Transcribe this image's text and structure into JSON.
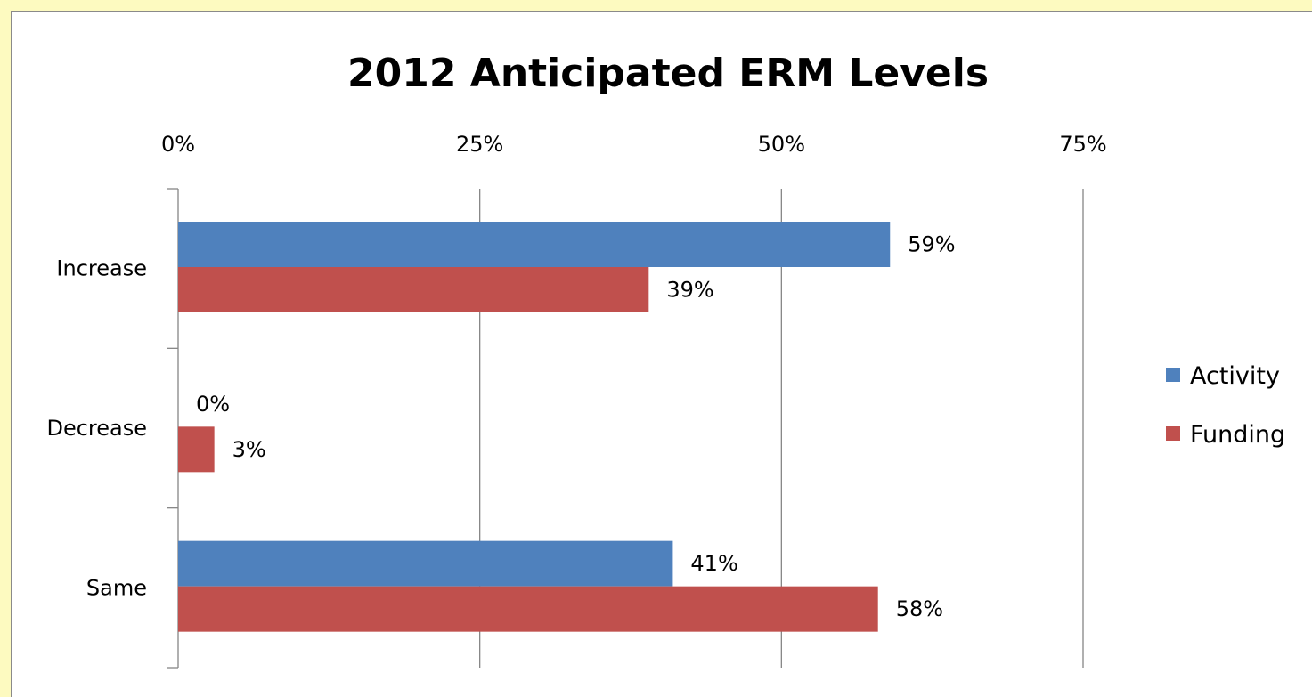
{
  "chart_data": {
    "type": "bar",
    "orientation": "horizontal",
    "title": "2012 Anticipated ERM Levels",
    "categories": [
      "Increase",
      "Decrease",
      "Same"
    ],
    "series": [
      {
        "name": "Activity",
        "color": "#4f81bd",
        "values": [
          59,
          0,
          41
        ],
        "labels": [
          "59%",
          "0%",
          "41%"
        ]
      },
      {
        "name": "Funding",
        "color": "#c0504d",
        "values": [
          39,
          3,
          58
        ],
        "labels": [
          "39%",
          "3%",
          "58%"
        ]
      }
    ],
    "xaxis": {
      "position": "top",
      "ticks": [
        0,
        25,
        50,
        75
      ],
      "tick_labels": [
        "0%",
        "25%",
        "50%",
        "75%"
      ],
      "xlim": [
        0,
        75
      ]
    },
    "grid": true,
    "legend": {
      "position": "right"
    }
  },
  "colors": {
    "page_background": "#fdfac0",
    "plot_background": "#ffffff",
    "gridline": "#868686"
  }
}
